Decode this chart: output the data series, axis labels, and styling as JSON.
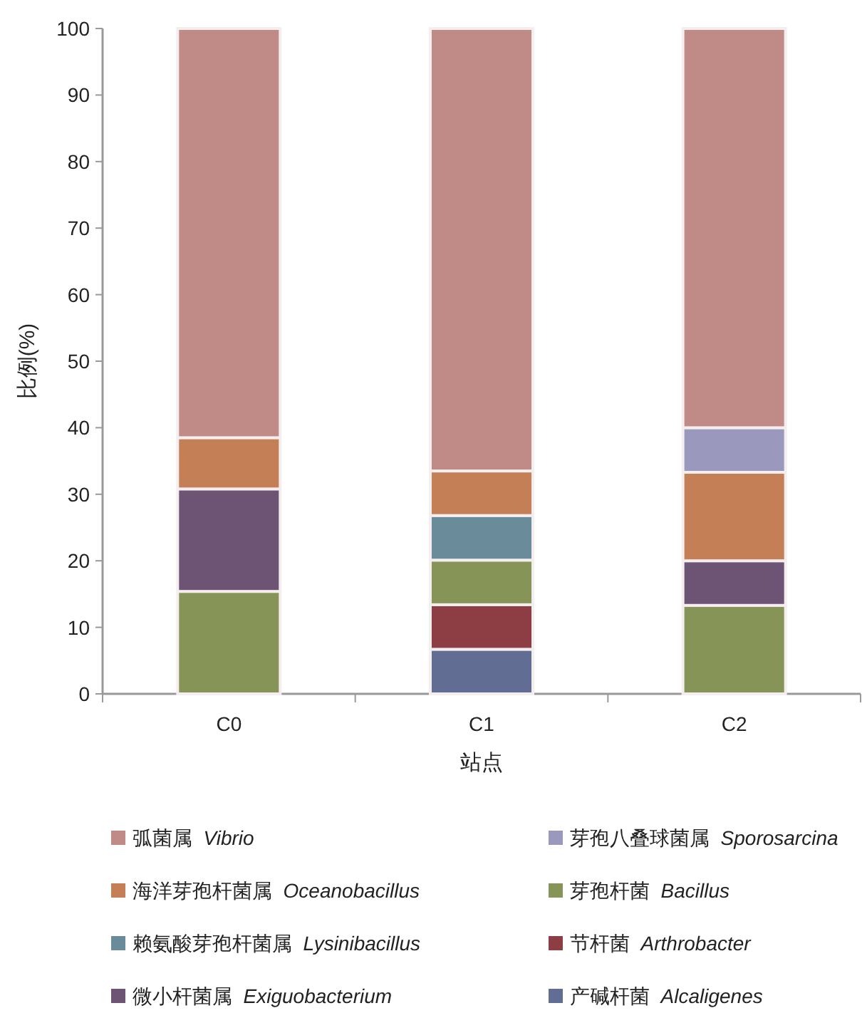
{
  "chart_data": {
    "type": "bar",
    "stacked": true,
    "xlabel": "站点",
    "ylabel": "比例(%)",
    "categories": [
      "C0",
      "C1",
      "C2"
    ],
    "ylim": [
      0,
      100
    ],
    "yticks": [
      0,
      10,
      20,
      30,
      40,
      50,
      60,
      70,
      80,
      90,
      100
    ],
    "grid": false,
    "legend": "bottom",
    "series": [
      {
        "name": "产碱杆菌  *Alcaligenes*",
        "color": "#626d93",
        "values": [
          0,
          6.7,
          0
        ]
      },
      {
        "name": "节杆菌  *Arthrobacter*",
        "color": "#8c3e44",
        "values": [
          0,
          6.7,
          0
        ]
      },
      {
        "name": "芽孢杆菌  *Bacillus*",
        "color": "#879458",
        "values": [
          15.4,
          6.7,
          13.3
        ]
      },
      {
        "name": "微小杆菌属  *Exiguobacterium*",
        "color": "#6e5474",
        "values": [
          15.4,
          0,
          6.7
        ]
      },
      {
        "name": "赖氨酸芽孢杆菌属  *Lysinibacillus*",
        "color": "#6a8b9a",
        "values": [
          0,
          6.7,
          0
        ]
      },
      {
        "name": "海洋芽孢杆菌属  *Oceanobacillus*",
        "color": "#c47f56",
        "values": [
          7.7,
          6.7,
          13.3
        ]
      },
      {
        "name": "芽孢八叠球菌属  *Sporosarcina*",
        "color": "#9a98bd",
        "values": [
          0,
          0,
          6.7
        ]
      },
      {
        "name": "弧菌属  *Vibrio*",
        "color": "#c08a86",
        "values": [
          61.5,
          66.5,
          60
        ]
      }
    ]
  }
}
